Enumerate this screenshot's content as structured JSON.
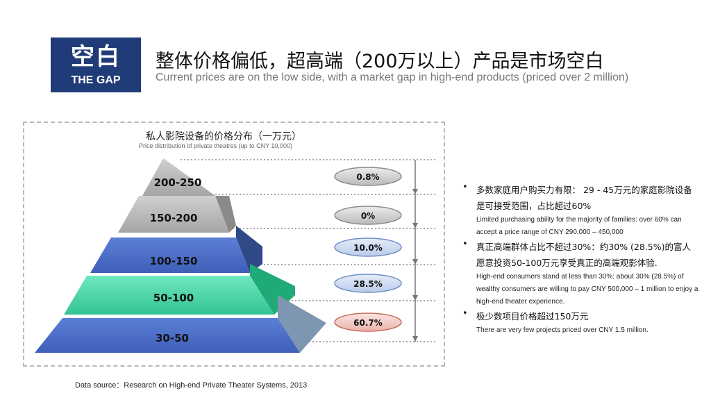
{
  "header": {
    "badge_zh": "空白",
    "badge_en": "THE GAP",
    "title_zh": "整体价格偏低，超高端（200万以上）产品是市场空白",
    "title_en": "Current prices are on the low side, with a market gap in high-end products (priced over 2 million)"
  },
  "chart_data": {
    "type": "pyramid",
    "title": "私人影院设备的价格分布（一万元）",
    "subtitle": "Price distribution of private theatres (up to CNY 10,000)",
    "categories": [
      "200-250",
      "150-200",
      "100-150",
      "50-100",
      "30-50"
    ],
    "values": [
      0.8,
      0,
      10.0,
      28.5,
      60.7
    ],
    "value_labels": [
      "0.8%",
      "0%",
      "10.0%",
      "28.5%",
      "60.7%"
    ]
  },
  "bullets": [
    {
      "zh": "多数家庭用户购买力有限： 29 - 45万元的家庭影院设备是可接受范围，占比超过60%",
      "en": "Limited purchasing ability for the majority of families: over 60% can accept a price range of CNY 290,000 – 450,000"
    },
    {
      "zh": "真正高端群体占比不超过30%：约30% (28.5%)的富人愿意投资50-100万元享受真正的高端观影体验.",
      "en": "High-end consumers stand at less than 30%: about 30% (28.5%) of wealthy consumers are willing to pay CNY 500,000 – 1 million to enjoy a high-end theater experience."
    },
    {
      "zh": "极少数项目价格超过150万元",
      "en": "There are very few projects priced over CNY 1.5 million."
    }
  ],
  "bullet_symbol": "•",
  "source": "Data source：Research on High-end Private Theater Systems, 2013",
  "colors": {
    "badge": "#1f3c78",
    "gray_layer": "#b9b9b9",
    "blue_layer": "#4f70c8",
    "teal_layer": "#45d6a6",
    "pill_gray": "#c8c8c8",
    "pill_blue": "#c9d6ee",
    "pill_red": "#f1c8c3"
  }
}
